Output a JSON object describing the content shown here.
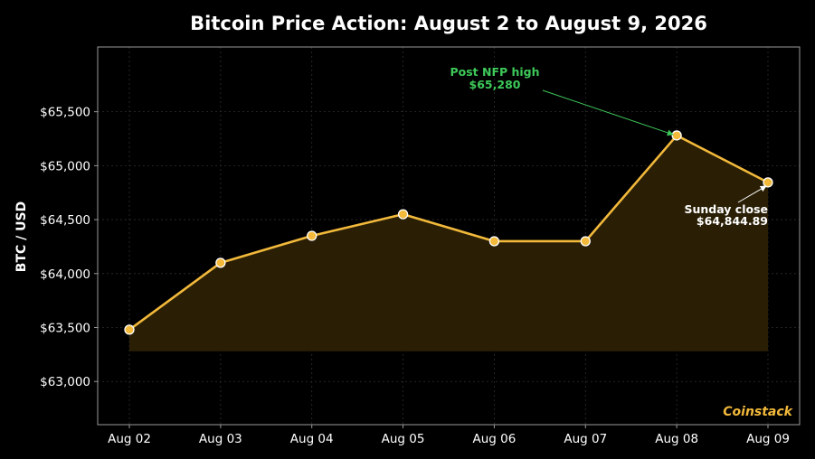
{
  "colors": {
    "background": "#000000",
    "line": "#f2b93b",
    "fill": "#2a1f05",
    "grid": "#2e2e2e",
    "frame": "#9a9a9a",
    "text": "#ffffff",
    "high_annotation": "#3ec95a",
    "close_annotation": "#ffffff",
    "brand": "#f2b93b"
  },
  "chart_data": {
    "type": "line",
    "title": "Bitcoin Price Action: August 2 to August 9, 2026",
    "xlabel": "",
    "ylabel": "BTC / USD",
    "categories": [
      "Aug 02",
      "Aug 03",
      "Aug 04",
      "Aug 05",
      "Aug 06",
      "Aug 07",
      "Aug 08",
      "Aug 09"
    ],
    "values": [
      63480,
      64100,
      64350,
      64550,
      64300,
      64300,
      65280,
      64844.89
    ],
    "fill_baseline": 63280,
    "ylim": [
      62600,
      66100
    ],
    "yticks": [
      63000,
      63500,
      64000,
      64500,
      65000,
      65500
    ],
    "ytick_labels": [
      "$63,000",
      "$63,500",
      "$64,000",
      "$64,500",
      "$65,000",
      "$65,500"
    ],
    "grid": true,
    "annotations": [
      {
        "index": 6,
        "lines": [
          "Post NFP high",
          "$65,280"
        ],
        "style": "high"
      },
      {
        "index": 7,
        "lines": [
          "Sunday close",
          "$64,844.89"
        ],
        "style": "close"
      }
    ],
    "watermark": "Coinstack"
  }
}
